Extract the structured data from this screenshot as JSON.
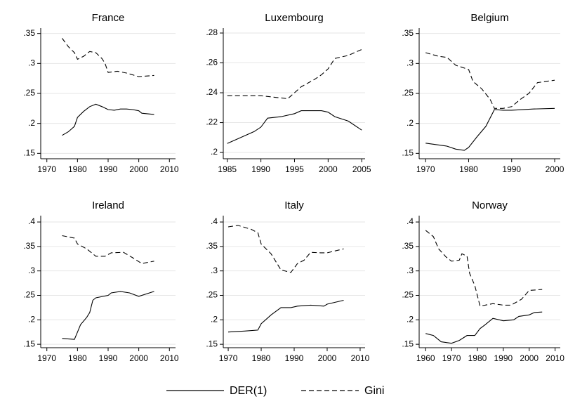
{
  "chart_data": [
    {
      "type": "line",
      "title": "France",
      "xlim": [
        1968,
        2012
      ],
      "xticks": [
        1970,
        1980,
        1990,
        2000,
        2010
      ],
      "ylim": [
        0.141,
        0.359
      ],
      "yticks": [
        {
          "value": 0.15,
          "label": ".15"
        },
        {
          "value": 0.2,
          "label": ".2"
        },
        {
          "value": 0.25,
          "label": ".25"
        },
        {
          "value": 0.3,
          "label": ".3"
        },
        {
          "value": 0.35,
          "label": ".35"
        }
      ],
      "grid": true,
      "series": [
        {
          "style": "solid",
          "color": "#000000",
          "x": [
            1975,
            1977,
            1979,
            1980,
            1982,
            1984,
            1986,
            1988,
            1990,
            1992,
            1994,
            1996,
            1998,
            2000,
            2001,
            2005
          ],
          "values": [
            0.18,
            0.186,
            0.195,
            0.21,
            0.22,
            0.228,
            0.232,
            0.228,
            0.223,
            0.222,
            0.224,
            0.224,
            0.223,
            0.221,
            0.217,
            0.215
          ]
        },
        {
          "style": "dashed",
          "color": "#000000",
          "x": [
            1975,
            1977,
            1979,
            1980,
            1982,
            1984,
            1986,
            1988,
            1989,
            1990,
            1993,
            1996,
            2000,
            2005
          ],
          "values": [
            0.342,
            0.328,
            0.318,
            0.307,
            0.312,
            0.32,
            0.318,
            0.308,
            0.3,
            0.285,
            0.287,
            0.284,
            0.278,
            0.28
          ]
        }
      ]
    },
    {
      "type": "line",
      "title": "Luxembourg",
      "xlim": [
        1984.4,
        2005.5
      ],
      "xticks": [
        1985,
        1990,
        1995,
        2000,
        2005
      ],
      "ylim": [
        0.1958,
        0.2833
      ],
      "yticks": [
        {
          "value": 0.2,
          "label": ".2"
        },
        {
          "value": 0.22,
          "label": ".22"
        },
        {
          "value": 0.24,
          "label": ".24"
        },
        {
          "value": 0.26,
          "label": ".26"
        },
        {
          "value": 0.28,
          "label": ".28"
        }
      ],
      "grid": true,
      "series": [
        {
          "style": "solid",
          "color": "#000000",
          "x": [
            1985,
            1987,
            1989,
            1990,
            1991,
            1993,
            1995,
            1996,
            1999,
            2000,
            2001,
            2003,
            2005
          ],
          "values": [
            0.206,
            0.21,
            0.214,
            0.217,
            0.223,
            0.224,
            0.226,
            0.228,
            0.228,
            0.227,
            0.224,
            0.221,
            0.215
          ]
        },
        {
          "style": "dashed",
          "color": "#000000",
          "x": [
            1985,
            1990,
            1994,
            1995,
            1996,
            1998,
            1999,
            2000,
            2001,
            2003,
            2005
          ],
          "values": [
            0.238,
            0.238,
            0.236,
            0.24,
            0.244,
            0.249,
            0.252,
            0.256,
            0.263,
            0.265,
            0.269
          ]
        }
      ]
    },
    {
      "type": "line",
      "title": "Belgium",
      "xlim": [
        1968.5,
        2001.3
      ],
      "xticks": [
        1970,
        1980,
        1990,
        2000
      ],
      "ylim": [
        0.141,
        0.359
      ],
      "yticks": [
        {
          "value": 0.15,
          "label": ".15"
        },
        {
          "value": 0.2,
          "label": ".2"
        },
        {
          "value": 0.25,
          "label": ".25"
        },
        {
          "value": 0.3,
          "label": ".3"
        },
        {
          "value": 0.35,
          "label": ".35"
        }
      ],
      "grid": true,
      "series": [
        {
          "style": "solid",
          "color": "#000000",
          "x": [
            1970,
            1975,
            1977,
            1979,
            1980,
            1982,
            1984,
            1986,
            1988,
            1990,
            1995,
            2000
          ],
          "values": [
            0.167,
            0.162,
            0.157,
            0.155,
            0.16,
            0.178,
            0.195,
            0.223,
            0.222,
            0.222,
            0.224,
            0.225
          ]
        },
        {
          "style": "dashed",
          "color": "#000000",
          "x": [
            1970,
            1973,
            1975,
            1977,
            1980,
            1981,
            1983,
            1985,
            1986,
            1988,
            1990,
            1992,
            1994,
            1996,
            2000
          ],
          "values": [
            0.318,
            0.312,
            0.31,
            0.297,
            0.29,
            0.27,
            0.258,
            0.24,
            0.225,
            0.225,
            0.228,
            0.24,
            0.25,
            0.268,
            0.272
          ]
        }
      ]
    },
    {
      "type": "line",
      "title": "Ireland",
      "xlim": [
        1968,
        2012
      ],
      "xticks": [
        1970,
        1980,
        1990,
        2000,
        2010
      ],
      "ylim": [
        0.143,
        0.413
      ],
      "yticks": [
        {
          "value": 0.15,
          "label": ".15"
        },
        {
          "value": 0.2,
          "label": ".2"
        },
        {
          "value": 0.25,
          "label": ".25"
        },
        {
          "value": 0.3,
          "label": ".3"
        },
        {
          "value": 0.35,
          "label": ".35"
        },
        {
          "value": 0.4,
          "label": ".4"
        }
      ],
      "grid": true,
      "series": [
        {
          "style": "solid",
          "color": "#000000",
          "x": [
            1975,
            1979,
            1980,
            1981,
            1983,
            1984,
            1985,
            1986,
            1990,
            1991,
            1994,
            1997,
            2000,
            2005
          ],
          "values": [
            0.162,
            0.16,
            0.175,
            0.19,
            0.205,
            0.215,
            0.24,
            0.245,
            0.25,
            0.255,
            0.258,
            0.255,
            0.248,
            0.258
          ]
        },
        {
          "style": "dashed",
          "color": "#000000",
          "x": [
            1975,
            1979,
            1980,
            1983,
            1986,
            1989,
            1991,
            1995,
            1998,
            2001,
            2005
          ],
          "values": [
            0.372,
            0.367,
            0.355,
            0.345,
            0.33,
            0.33,
            0.337,
            0.338,
            0.327,
            0.315,
            0.32
          ]
        }
      ]
    },
    {
      "type": "line",
      "title": "Italy",
      "xlim": [
        1968.5,
        2011.5
      ],
      "xticks": [
        1970,
        1980,
        1990,
        2000,
        2010
      ],
      "ylim": [
        0.143,
        0.413
      ],
      "yticks": [
        {
          "value": 0.15,
          "label": ".15"
        },
        {
          "value": 0.2,
          "label": ".2"
        },
        {
          "value": 0.25,
          "label": ".25"
        },
        {
          "value": 0.3,
          "label": ".3"
        },
        {
          "value": 0.35,
          "label": ".35"
        },
        {
          "value": 0.4,
          "label": ".4"
        }
      ],
      "grid": true,
      "series": [
        {
          "style": "solid",
          "color": "#000000",
          "x": [
            1970,
            1975,
            1979,
            1980,
            1983,
            1986,
            1989,
            1991,
            1995,
            1999,
            2000,
            2005
          ],
          "values": [
            0.175,
            0.177,
            0.179,
            0.192,
            0.21,
            0.225,
            0.225,
            0.228,
            0.23,
            0.228,
            0.232,
            0.24
          ]
        },
        {
          "style": "dashed",
          "color": "#000000",
          "x": [
            1970,
            1973,
            1977,
            1979,
            1980,
            1983,
            1986,
            1989,
            1991,
            1993,
            1995,
            1998,
            2000,
            2005
          ],
          "values": [
            0.39,
            0.393,
            0.385,
            0.378,
            0.355,
            0.335,
            0.302,
            0.297,
            0.315,
            0.322,
            0.338,
            0.337,
            0.337,
            0.345
          ]
        }
      ]
    },
    {
      "type": "line",
      "title": "Norway",
      "xlim": [
        1957.5,
        2012
      ],
      "xticks": [
        1960,
        1970,
        1980,
        1990,
        2000,
        2010
      ],
      "ylim": [
        0.143,
        0.413
      ],
      "yticks": [
        {
          "value": 0.15,
          "label": ".15"
        },
        {
          "value": 0.2,
          "label": ".2"
        },
        {
          "value": 0.25,
          "label": ".25"
        },
        {
          "value": 0.3,
          "label": ".3"
        },
        {
          "value": 0.35,
          "label": ".35"
        },
        {
          "value": 0.4,
          "label": ".4"
        }
      ],
      "grid": true,
      "series": [
        {
          "style": "solid",
          "color": "#000000",
          "x": [
            1960,
            1963,
            1966,
            1970,
            1973,
            1976,
            1979,
            1981,
            1983,
            1986,
            1990,
            1994,
            1996,
            2000,
            2002,
            2005
          ],
          "values": [
            0.172,
            0.168,
            0.155,
            0.152,
            0.158,
            0.168,
            0.168,
            0.182,
            0.19,
            0.203,
            0.198,
            0.2,
            0.207,
            0.21,
            0.215,
            0.216
          ]
        },
        {
          "style": "dashed",
          "color": "#000000",
          "x": [
            1960,
            1963,
            1965,
            1968,
            1970,
            1973,
            1974,
            1976,
            1977,
            1979,
            1981,
            1983,
            1986,
            1990,
            1993,
            1997,
            2000,
            2005
          ],
          "values": [
            0.383,
            0.37,
            0.345,
            0.328,
            0.32,
            0.322,
            0.335,
            0.33,
            0.295,
            0.27,
            0.228,
            0.23,
            0.233,
            0.23,
            0.23,
            0.242,
            0.26,
            0.262
          ]
        }
      ]
    }
  ],
  "legend": [
    {
      "name": "DER(1)",
      "style": "solid"
    },
    {
      "name": "Gini",
      "style": "dashed"
    }
  ]
}
